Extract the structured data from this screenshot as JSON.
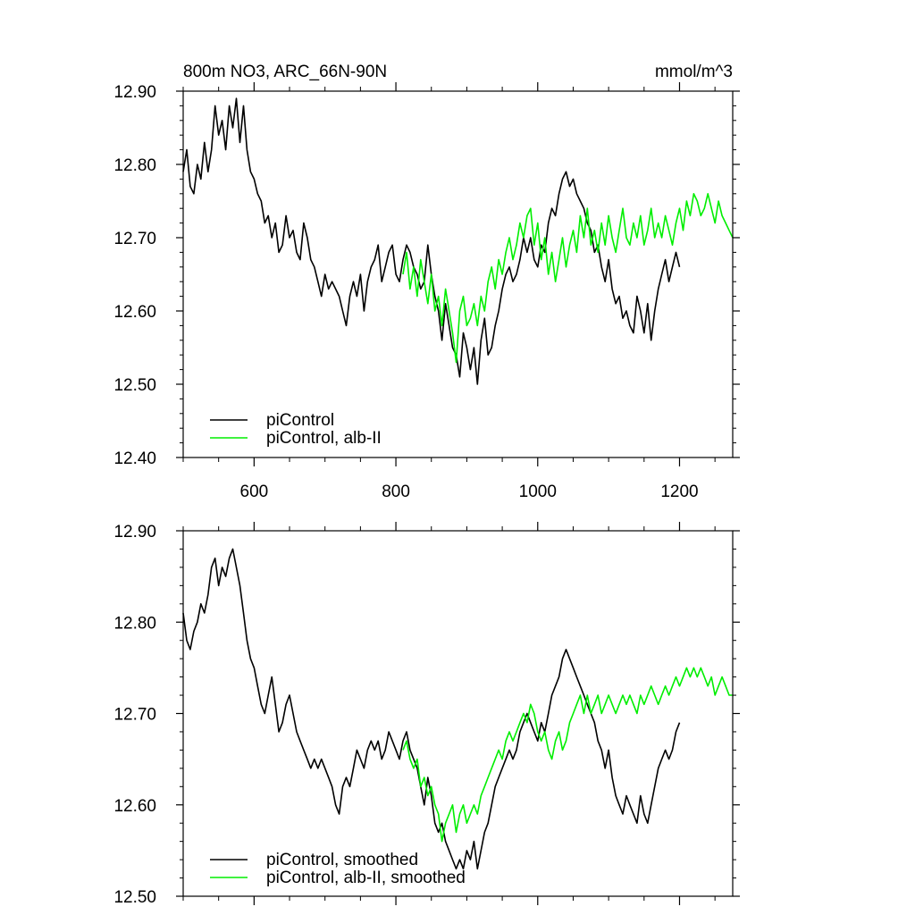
{
  "chart_data": [
    {
      "type": "line",
      "title": "800m NO3, ARC_66N-90N",
      "units": "mmol/m^3",
      "xlabel": "",
      "ylabel": "",
      "xlim": [
        500,
        1275
      ],
      "ylim": [
        12.4,
        12.9
      ],
      "xticks": [
        600,
        800,
        1000,
        1200
      ],
      "xtick_labels": [
        "600",
        "800",
        "1000",
        "1200"
      ],
      "yticks": [
        12.4,
        12.5,
        12.6,
        12.7,
        12.8,
        12.9
      ],
      "ytick_labels": [
        "12.40",
        "12.50",
        "12.60",
        "12.70",
        "12.80",
        "12.90"
      ],
      "grid": false,
      "legend_position": "bottom-left",
      "series": [
        {
          "name": "piControl",
          "color": "#000000",
          "x": [
            500,
            505,
            510,
            515,
            520,
            525,
            530,
            535,
            540,
            545,
            550,
            555,
            560,
            565,
            570,
            575,
            580,
            585,
            590,
            595,
            600,
            605,
            610,
            615,
            620,
            625,
            630,
            635,
            640,
            645,
            650,
            655,
            660,
            665,
            670,
            675,
            680,
            685,
            690,
            695,
            700,
            705,
            710,
            715,
            720,
            725,
            730,
            735,
            740,
            745,
            750,
            755,
            760,
            765,
            770,
            775,
            780,
            785,
            790,
            795,
            800,
            805,
            810,
            815,
            820,
            825,
            830,
            835,
            840,
            845,
            850,
            855,
            860,
            865,
            870,
            875,
            880,
            885,
            890,
            895,
            900,
            905,
            910,
            915,
            920,
            925,
            930,
            935,
            940,
            945,
            950,
            955,
            960,
            965,
            970,
            975,
            980,
            985,
            990,
            995,
            1000,
            1005,
            1010,
            1015,
            1020,
            1025,
            1030,
            1035,
            1040,
            1045,
            1050,
            1055,
            1060,
            1065,
            1070,
            1075,
            1080,
            1085,
            1090,
            1095,
            1100,
            1105,
            1110,
            1115,
            1120,
            1125,
            1130,
            1135,
            1140,
            1145,
            1150,
            1155,
            1160,
            1165,
            1170,
            1175,
            1180,
            1185,
            1190,
            1195,
            1200
          ],
          "y": [
            12.79,
            12.82,
            12.77,
            12.76,
            12.8,
            12.78,
            12.83,
            12.79,
            12.82,
            12.88,
            12.84,
            12.86,
            12.82,
            12.88,
            12.85,
            12.89,
            12.83,
            12.88,
            12.82,
            12.79,
            12.78,
            12.76,
            12.75,
            12.72,
            12.73,
            12.7,
            12.72,
            12.68,
            12.69,
            12.73,
            12.7,
            12.71,
            12.68,
            12.67,
            12.72,
            12.7,
            12.67,
            12.66,
            12.64,
            12.62,
            12.65,
            12.63,
            12.64,
            12.63,
            12.62,
            12.6,
            12.58,
            12.62,
            12.64,
            12.62,
            12.65,
            12.6,
            12.64,
            12.66,
            12.67,
            12.69,
            12.64,
            12.66,
            12.68,
            12.69,
            12.65,
            12.64,
            12.67,
            12.69,
            12.68,
            12.66,
            12.65,
            12.63,
            12.64,
            12.69,
            12.65,
            12.62,
            12.6,
            12.56,
            12.61,
            12.58,
            12.55,
            12.54,
            12.51,
            12.57,
            12.55,
            12.52,
            12.55,
            12.5,
            12.56,
            12.59,
            12.54,
            12.55,
            12.58,
            12.6,
            12.63,
            12.65,
            12.66,
            12.64,
            12.65,
            12.67,
            12.7,
            12.68,
            12.7,
            12.67,
            12.66,
            12.69,
            12.68,
            12.72,
            12.74,
            12.73,
            12.76,
            12.78,
            12.79,
            12.77,
            12.78,
            12.76,
            12.75,
            12.74,
            12.72,
            12.71,
            12.68,
            12.69,
            12.66,
            12.64,
            12.67,
            12.63,
            12.61,
            12.62,
            12.59,
            12.6,
            12.58,
            12.57,
            12.62,
            12.6,
            12.57,
            12.61,
            12.56,
            12.6,
            12.63,
            12.65,
            12.67,
            12.64,
            12.66,
            12.68,
            12.66
          ]
        },
        {
          "name": "piControl, alb-II",
          "color": "#00ee00",
          "x": [
            810,
            815,
            820,
            825,
            830,
            835,
            840,
            845,
            850,
            855,
            860,
            865,
            870,
            875,
            880,
            885,
            890,
            895,
            900,
            905,
            910,
            915,
            920,
            925,
            930,
            935,
            940,
            945,
            950,
            955,
            960,
            965,
            970,
            975,
            980,
            985,
            990,
            995,
            1000,
            1005,
            1010,
            1015,
            1020,
            1025,
            1030,
            1035,
            1040,
            1045,
            1050,
            1055,
            1060,
            1065,
            1070,
            1075,
            1080,
            1085,
            1090,
            1095,
            1100,
            1105,
            1110,
            1115,
            1120,
            1125,
            1130,
            1135,
            1140,
            1145,
            1150,
            1155,
            1160,
            1165,
            1170,
            1175,
            1180,
            1185,
            1190,
            1195,
            1200,
            1205,
            1210,
            1215,
            1220,
            1225,
            1230,
            1235,
            1240,
            1245,
            1250,
            1255,
            1260,
            1265,
            1270,
            1275
          ],
          "y": [
            12.65,
            12.68,
            12.63,
            12.66,
            12.62,
            12.67,
            12.64,
            12.61,
            12.65,
            12.6,
            12.62,
            12.58,
            12.63,
            12.6,
            12.57,
            12.53,
            12.6,
            12.62,
            12.58,
            12.59,
            12.61,
            12.58,
            12.62,
            12.6,
            12.64,
            12.66,
            12.63,
            12.67,
            12.65,
            12.68,
            12.7,
            12.67,
            12.69,
            12.72,
            12.7,
            12.73,
            12.74,
            12.69,
            12.72,
            12.67,
            12.7,
            12.65,
            12.68,
            12.64,
            12.67,
            12.7,
            12.66,
            12.69,
            12.71,
            12.68,
            12.73,
            12.7,
            12.74,
            12.69,
            12.71,
            12.68,
            12.72,
            12.69,
            12.73,
            12.7,
            12.68,
            12.71,
            12.74,
            12.7,
            12.69,
            12.72,
            12.7,
            12.73,
            12.69,
            12.71,
            12.74,
            12.7,
            12.72,
            12.7,
            12.73,
            12.71,
            12.69,
            12.72,
            12.74,
            12.71,
            12.75,
            12.73,
            12.76,
            12.75,
            12.73,
            12.74,
            12.76,
            12.74,
            12.72,
            12.75,
            12.73,
            12.72,
            12.71,
            12.7
          ]
        }
      ]
    },
    {
      "type": "line",
      "title": "",
      "xlabel": "",
      "ylabel": "",
      "xlim": [
        500,
        1275
      ],
      "ylim": [
        12.5,
        12.9
      ],
      "xticks": [
        600,
        800,
        1000,
        1200
      ],
      "xtick_labels": [],
      "yticks": [
        12.5,
        12.6,
        12.7,
        12.8,
        12.9
      ],
      "ytick_labels": [
        "12.50",
        "12.60",
        "12.70",
        "12.80",
        "12.90"
      ],
      "grid": false,
      "legend_position": "bottom-left",
      "series": [
        {
          "name": "piControl, smoothed",
          "color": "#000000",
          "x": [
            500,
            505,
            510,
            515,
            520,
            525,
            530,
            535,
            540,
            545,
            550,
            555,
            560,
            565,
            570,
            575,
            580,
            585,
            590,
            595,
            600,
            605,
            610,
            615,
            620,
            625,
            630,
            635,
            640,
            645,
            650,
            655,
            660,
            665,
            670,
            675,
            680,
            685,
            690,
            695,
            700,
            705,
            710,
            715,
            720,
            725,
            730,
            735,
            740,
            745,
            750,
            755,
            760,
            765,
            770,
            775,
            780,
            785,
            790,
            795,
            800,
            805,
            810,
            815,
            820,
            825,
            830,
            835,
            840,
            845,
            850,
            855,
            860,
            865,
            870,
            875,
            880,
            885,
            890,
            895,
            900,
            905,
            910,
            915,
            920,
            925,
            930,
            935,
            940,
            945,
            950,
            955,
            960,
            965,
            970,
            975,
            980,
            985,
            990,
            995,
            1000,
            1005,
            1010,
            1015,
            1020,
            1025,
            1030,
            1035,
            1040,
            1045,
            1050,
            1055,
            1060,
            1065,
            1070,
            1075,
            1080,
            1085,
            1090,
            1095,
            1100,
            1105,
            1110,
            1115,
            1120,
            1125,
            1130,
            1135,
            1140,
            1145,
            1150,
            1155,
            1160,
            1165,
            1170,
            1175,
            1180,
            1185,
            1190,
            1195,
            1200
          ],
          "y": [
            12.81,
            12.78,
            12.77,
            12.79,
            12.8,
            12.82,
            12.81,
            12.83,
            12.86,
            12.87,
            12.84,
            12.86,
            12.85,
            12.87,
            12.88,
            12.86,
            12.84,
            12.81,
            12.78,
            12.76,
            12.75,
            12.73,
            12.71,
            12.7,
            12.72,
            12.74,
            12.71,
            12.68,
            12.69,
            12.71,
            12.72,
            12.7,
            12.68,
            12.67,
            12.66,
            12.65,
            12.64,
            12.65,
            12.64,
            12.65,
            12.64,
            12.63,
            12.62,
            12.6,
            12.59,
            12.62,
            12.63,
            12.62,
            12.64,
            12.66,
            12.65,
            12.64,
            12.66,
            12.67,
            12.66,
            12.67,
            12.65,
            12.66,
            12.68,
            12.67,
            12.66,
            12.65,
            12.67,
            12.68,
            12.66,
            12.65,
            12.64,
            12.62,
            12.6,
            12.63,
            12.61,
            12.58,
            12.57,
            12.58,
            12.56,
            12.55,
            12.54,
            12.53,
            12.54,
            12.53,
            12.55,
            12.54,
            12.56,
            12.53,
            12.55,
            12.57,
            12.58,
            12.6,
            12.62,
            12.63,
            12.64,
            12.65,
            12.66,
            12.65,
            12.66,
            12.68,
            12.69,
            12.7,
            12.69,
            12.68,
            12.67,
            12.69,
            12.68,
            12.7,
            12.72,
            12.73,
            12.74,
            12.76,
            12.77,
            12.76,
            12.75,
            12.74,
            12.73,
            12.72,
            12.71,
            12.7,
            12.69,
            12.67,
            12.66,
            12.64,
            12.66,
            12.63,
            12.61,
            12.6,
            12.59,
            12.61,
            12.6,
            12.59,
            12.58,
            12.61,
            12.59,
            12.58,
            12.6,
            12.62,
            12.64,
            12.65,
            12.66,
            12.65,
            12.66,
            12.68,
            12.69
          ]
        },
        {
          "name": "piControl, alb-II, smoothed",
          "color": "#00ee00",
          "x": [
            810,
            815,
            820,
            825,
            830,
            835,
            840,
            845,
            850,
            855,
            860,
            865,
            870,
            875,
            880,
            885,
            890,
            895,
            900,
            905,
            910,
            915,
            920,
            925,
            930,
            935,
            940,
            945,
            950,
            955,
            960,
            965,
            970,
            975,
            980,
            985,
            990,
            995,
            1000,
            1005,
            1010,
            1015,
            1020,
            1025,
            1030,
            1035,
            1040,
            1045,
            1050,
            1055,
            1060,
            1065,
            1070,
            1075,
            1080,
            1085,
            1090,
            1095,
            1100,
            1105,
            1110,
            1115,
            1120,
            1125,
            1130,
            1135,
            1140,
            1145,
            1150,
            1155,
            1160,
            1165,
            1170,
            1175,
            1180,
            1185,
            1190,
            1195,
            1200,
            1205,
            1210,
            1215,
            1220,
            1225,
            1230,
            1235,
            1240,
            1245,
            1250,
            1255,
            1260,
            1265,
            1270,
            1275
          ],
          "y": [
            12.66,
            12.67,
            12.65,
            12.64,
            12.65,
            12.62,
            12.63,
            12.61,
            12.62,
            12.6,
            12.59,
            12.56,
            12.58,
            12.59,
            12.6,
            12.57,
            12.59,
            12.6,
            12.58,
            12.59,
            12.6,
            12.59,
            12.61,
            12.62,
            12.63,
            12.64,
            12.65,
            12.66,
            12.65,
            12.67,
            12.68,
            12.67,
            12.68,
            12.69,
            12.7,
            12.69,
            12.71,
            12.7,
            12.68,
            12.67,
            12.68,
            12.66,
            12.65,
            12.67,
            12.68,
            12.66,
            12.67,
            12.69,
            12.7,
            12.71,
            12.72,
            12.7,
            12.72,
            12.7,
            12.71,
            12.72,
            12.7,
            12.71,
            12.72,
            12.71,
            12.7,
            12.71,
            12.72,
            12.71,
            12.72,
            12.71,
            12.7,
            12.72,
            12.71,
            12.72,
            12.73,
            12.72,
            12.71,
            12.72,
            12.73,
            12.72,
            12.73,
            12.74,
            12.73,
            12.74,
            12.75,
            12.74,
            12.75,
            12.74,
            12.75,
            12.74,
            12.73,
            12.74,
            12.72,
            12.73,
            12.74,
            12.73,
            12.72,
            12.72
          ]
        }
      ]
    }
  ]
}
